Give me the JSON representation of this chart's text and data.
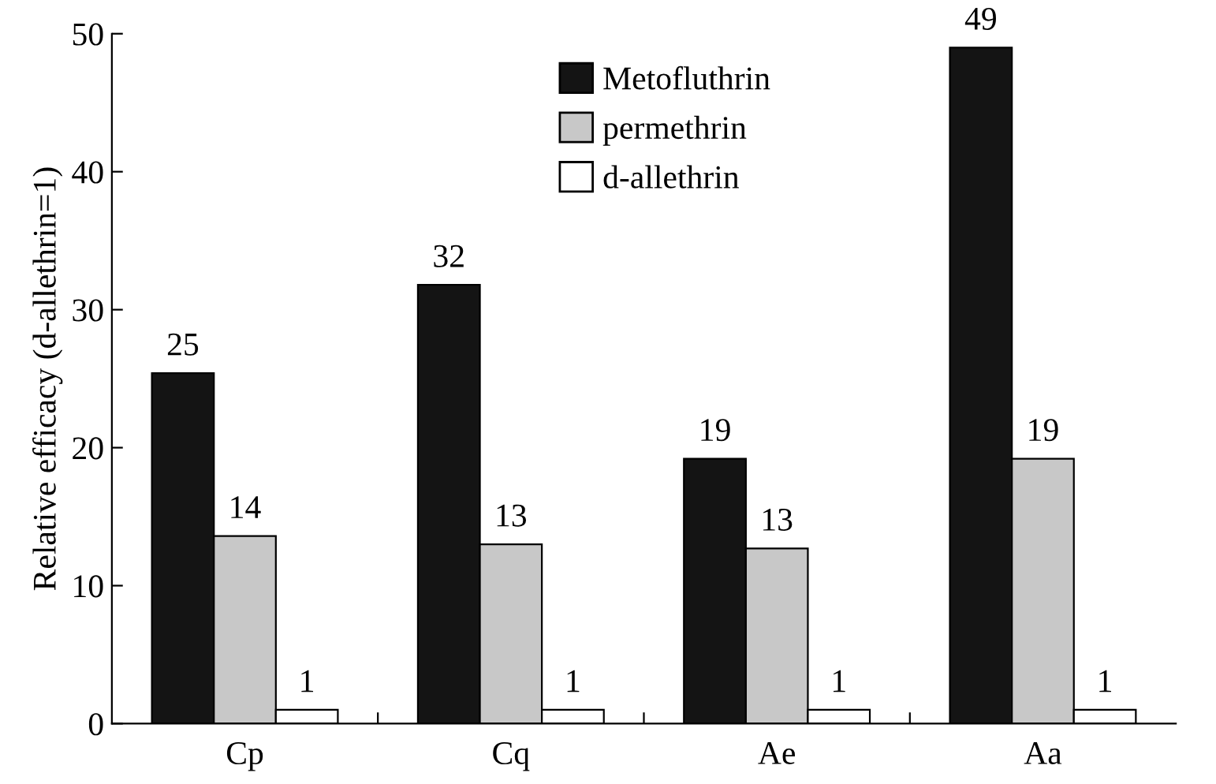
{
  "chart_data": {
    "type": "bar",
    "ylabel": "Relative efficacy (d-allethrin=1)",
    "categories": [
      "Cp",
      "Cq",
      "Ae",
      "Aa"
    ],
    "series": [
      {
        "name": "Metofluthrin",
        "color": "#141414",
        "values": [
          25.4,
          31.8,
          19.2,
          49.0
        ],
        "value_labels": [
          "25",
          "32",
          "19",
          "49"
        ]
      },
      {
        "name": "permethrin",
        "color": "#c8c8c8",
        "values": [
          13.6,
          13.0,
          12.7,
          19.2
        ],
        "value_labels": [
          "14",
          "13",
          "13",
          "19"
        ]
      },
      {
        "name": "d-allethrin",
        "color": "#ffffff",
        "values": [
          1,
          1,
          1,
          1
        ],
        "value_labels": [
          "1",
          "1",
          "1",
          "1"
        ]
      }
    ],
    "ylim": [
      0,
      50
    ],
    "yticks": [
      0,
      10,
      20,
      30,
      40,
      50
    ],
    "grid": false,
    "legend": "top"
  }
}
